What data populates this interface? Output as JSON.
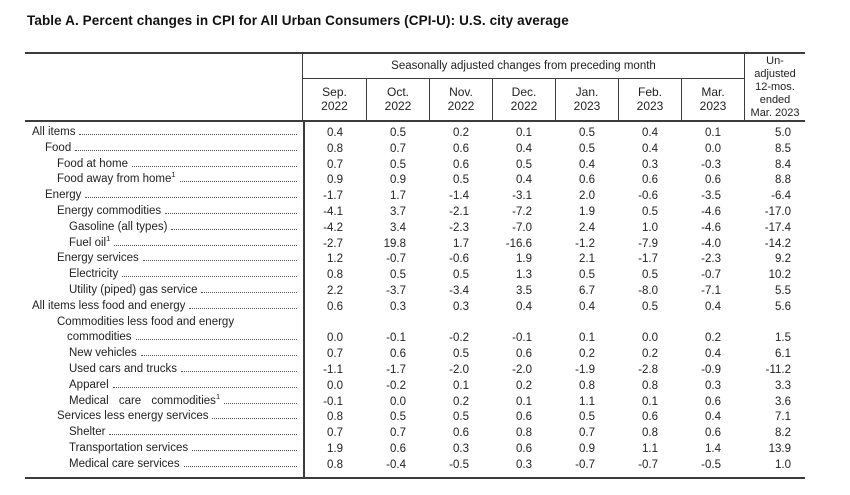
{
  "chart_data": {
    "type": "table",
    "title": "Table A. Percent changes in CPI for All Urban Consumers (CPI-U): U.S. city average",
    "span_header": "Seasonally adjusted changes from preceding month",
    "month_columns": [
      {
        "month": "Sep.",
        "year": "2022"
      },
      {
        "month": "Oct.",
        "year": "2022"
      },
      {
        "month": "Nov.",
        "year": "2022"
      },
      {
        "month": "Dec.",
        "year": "2022"
      },
      {
        "month": "Jan.",
        "year": "2023"
      },
      {
        "month": "Feb.",
        "year": "2023"
      },
      {
        "month": "Mar.",
        "year": "2023"
      }
    ],
    "unadjusted_column_lines": [
      "Un-",
      "adjusted",
      "12-mos.",
      "ended",
      "Mar. 2023"
    ],
    "rows": [
      {
        "label": "All items",
        "indent": 0,
        "values": [
          "0.4",
          "0.5",
          "0.2",
          "0.1",
          "0.5",
          "0.4",
          "0.1",
          "5.0"
        ]
      },
      {
        "label": "Food",
        "indent": 1,
        "values": [
          "0.8",
          "0.7",
          "0.6",
          "0.4",
          "0.5",
          "0.4",
          "0.0",
          "8.5"
        ]
      },
      {
        "label": "Food at home",
        "indent": 2,
        "values": [
          "0.7",
          "0.5",
          "0.6",
          "0.5",
          "0.4",
          "0.3",
          "-0.3",
          "8.4"
        ]
      },
      {
        "label": "Food away from home",
        "sup": "1",
        "indent": 2,
        "values": [
          "0.9",
          "0.9",
          "0.5",
          "0.4",
          "0.6",
          "0.6",
          "0.6",
          "8.8"
        ]
      },
      {
        "label": "Energy",
        "indent": 1,
        "values": [
          "-1.7",
          "1.7",
          "-1.4",
          "-3.1",
          "2.0",
          "-0.6",
          "-3.5",
          "-6.4"
        ]
      },
      {
        "label": "Energy commodities",
        "indent": 2,
        "values": [
          "-4.1",
          "3.7",
          "-2.1",
          "-7.2",
          "1.9",
          "0.5",
          "-4.6",
          "-17.0"
        ]
      },
      {
        "label": "Gasoline (all types)",
        "indent": 3,
        "values": [
          "-4.2",
          "3.4",
          "-2.3",
          "-7.0",
          "2.4",
          "1.0",
          "-4.6",
          "-17.4"
        ]
      },
      {
        "label": "Fuel oil",
        "sup": "1",
        "indent": 3,
        "values": [
          "-2.7",
          "19.8",
          "1.7",
          "-16.6",
          "-1.2",
          "-7.9",
          "-4.0",
          "-14.2"
        ]
      },
      {
        "label": "Energy services",
        "indent": 2,
        "values": [
          "1.2",
          "-0.7",
          "-0.6",
          "1.9",
          "2.1",
          "-1.7",
          "-2.3",
          "9.2"
        ]
      },
      {
        "label": "Electricity",
        "indent": 3,
        "values": [
          "0.8",
          "0.5",
          "0.5",
          "1.3",
          "0.5",
          "0.5",
          "-0.7",
          "10.2"
        ]
      },
      {
        "label": "Utility (piped) gas service",
        "indent": 3,
        "values": [
          "2.2",
          "-3.7",
          "-3.4",
          "3.5",
          "6.7",
          "-8.0",
          "-7.1",
          "5.5"
        ]
      },
      {
        "label": "All items less food and energy",
        "indent": 0,
        "values": [
          "0.6",
          "0.3",
          "0.3",
          "0.4",
          "0.4",
          "0.5",
          "0.4",
          "5.6"
        ]
      },
      {
        "label": "Commodities less food and energy",
        "label2": "commodities",
        "indent": 2,
        "values": [
          "0.0",
          "-0.1",
          "-0.2",
          "-0.1",
          "0.1",
          "0.0",
          "0.2",
          "1.5"
        ]
      },
      {
        "label": "New vehicles",
        "indent": 3,
        "values": [
          "0.7",
          "0.6",
          "0.5",
          "0.6",
          "0.2",
          "0.2",
          "0.4",
          "6.1"
        ]
      },
      {
        "label": "Used cars and trucks",
        "indent": 3,
        "values": [
          "-1.1",
          "-1.7",
          "-2.0",
          "-2.0",
          "-1.9",
          "-2.8",
          "-0.9",
          "-11.2"
        ]
      },
      {
        "label": "Apparel",
        "indent": 3,
        "values": [
          "0.0",
          "-0.2",
          "0.1",
          "0.2",
          "0.8",
          "0.8",
          "0.3",
          "3.3"
        ]
      },
      {
        "label": "Medical care commodities",
        "sup": "1",
        "indent": 3,
        "wide": true,
        "values": [
          "-0.1",
          "0.0",
          "0.2",
          "0.1",
          "1.1",
          "0.1",
          "0.6",
          "3.6"
        ]
      },
      {
        "label": "Services less energy services",
        "indent": 2,
        "values": [
          "0.8",
          "0.5",
          "0.5",
          "0.6",
          "0.5",
          "0.6",
          "0.4",
          "7.1"
        ]
      },
      {
        "label": "Shelter",
        "indent": 3,
        "values": [
          "0.7",
          "0.7",
          "0.6",
          "0.8",
          "0.7",
          "0.8",
          "0.6",
          "8.2"
        ]
      },
      {
        "label": "Transportation services",
        "indent": 3,
        "values": [
          "1.9",
          "0.6",
          "0.3",
          "0.6",
          "0.9",
          "1.1",
          "1.4",
          "13.9"
        ]
      },
      {
        "label": "Medical care services",
        "indent": 3,
        "values": [
          "0.8",
          "-0.4",
          "-0.5",
          "0.3",
          "-0.7",
          "-0.7",
          "-0.5",
          "1.0"
        ]
      }
    ]
  }
}
